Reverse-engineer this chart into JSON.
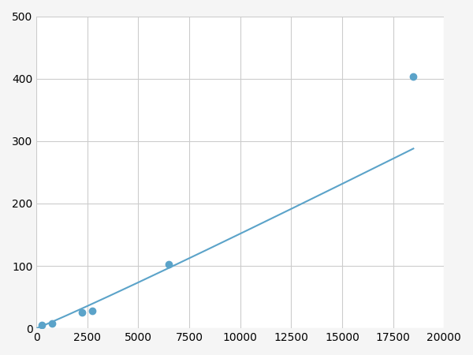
{
  "x": [
    250,
    750,
    2250,
    2750,
    6500,
    18500
  ],
  "y": [
    5,
    8,
    25,
    28,
    102,
    403
  ],
  "line_color": "#5ba3c9",
  "marker_color": "#5ba3c9",
  "marker_size": 6,
  "marker_style": "o",
  "linewidth": 1.5,
  "xlim": [
    0,
    20000
  ],
  "ylim": [
    0,
    500
  ],
  "xticks": [
    0,
    2500,
    5000,
    7500,
    10000,
    12500,
    15000,
    17500,
    20000
  ],
  "yticks": [
    0,
    100,
    200,
    300,
    400,
    500
  ],
  "grid_color": "#cccccc",
  "background_color": "#ffffff",
  "fig_background_color": "#f5f5f5",
  "tick_labelsize": 10
}
